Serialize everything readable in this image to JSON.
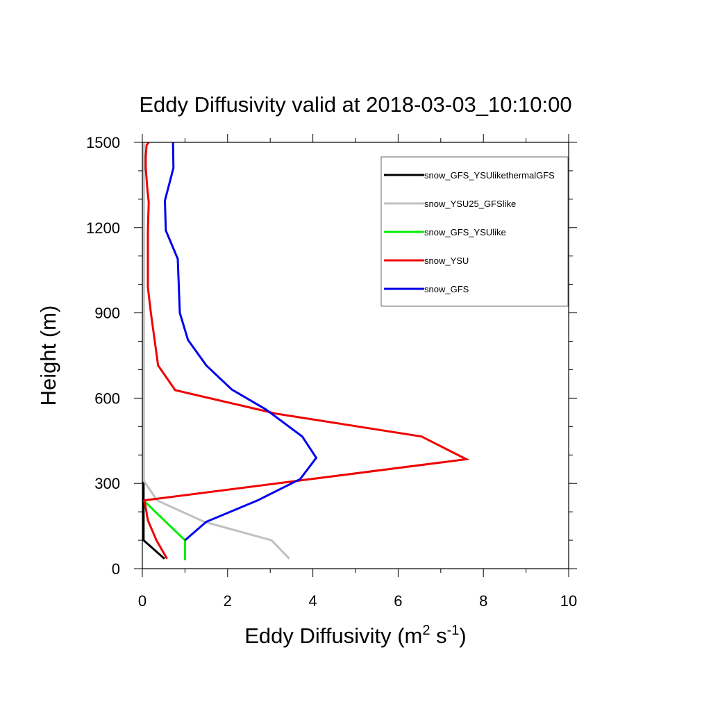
{
  "chart_data": {
    "type": "line",
    "title": "Eddy Diffusivity valid at 2018-03-03_10:10:00",
    "xlabel": {
      "base": "Eddy Diffusivity (m",
      "sup1": "2",
      "mid": " s",
      "sup2": "-1",
      "end": ")"
    },
    "ylabel": "Height (m)",
    "xlim": [
      0,
      10
    ],
    "ylim": [
      0,
      1500
    ],
    "xticks": [
      0,
      2,
      4,
      6,
      8,
      10
    ],
    "xtick_labels": [
      "0",
      "2",
      "4",
      "6",
      "8",
      "10"
    ],
    "yticks": [
      0,
      300,
      600,
      900,
      1200,
      1500
    ],
    "ytick_labels": [
      "0",
      "300",
      "600",
      "900",
      "1200",
      "1500"
    ],
    "grid": false,
    "legend_position": "top-right",
    "series": [
      {
        "name": "snow_GFS_YSUlikethermalGFS",
        "color": "#000000",
        "x": [
          0.52,
          0.03,
          0.03,
          0.03
        ],
        "y": [
          35,
          100,
          240,
          1500
        ]
      },
      {
        "name": "snow_YSU25_GFSlike",
        "color": "#c0c0c0",
        "x": [
          3.45,
          3.03,
          1.45,
          0.35,
          0.03,
          0.03
        ],
        "y": [
          35,
          100,
          165,
          240,
          310,
          1500
        ]
      },
      {
        "name": "snow_GFS_YSUlike",
        "color": "#00ee00",
        "x": [
          1.0,
          1.0,
          0.03
        ],
        "y": [
          30,
          100,
          240
        ]
      },
      {
        "name": "snow_YSU",
        "color": "#ee0000",
        "x": [
          0.58,
          0.33,
          0.13,
          0.05,
          0.03,
          7.6,
          6.55,
          3.15,
          0.77,
          0.37,
          0.2,
          0.13,
          0.13,
          0.13,
          0.15,
          0.12,
          0.08,
          0.08,
          0.1,
          0.15
        ],
        "y": [
          35,
          100,
          170,
          240,
          240,
          385,
          465,
          545,
          628,
          715,
          900,
          990,
          1090,
          1190,
          1290,
          1330,
          1410,
          1450,
          1490,
          1500
        ]
      },
      {
        "name": "snow_GFS",
        "color": "#0000ee",
        "x": [
          1.0,
          1.5,
          2.7,
          3.7,
          4.08,
          3.75,
          2.9,
          2.1,
          1.5,
          1.07,
          0.88,
          0.83,
          0.55,
          0.53,
          0.73,
          0.72
        ],
        "y": [
          100,
          165,
          240,
          315,
          390,
          465,
          560,
          630,
          715,
          805,
          900,
          1090,
          1190,
          1295,
          1410,
          1500
        ]
      }
    ]
  }
}
